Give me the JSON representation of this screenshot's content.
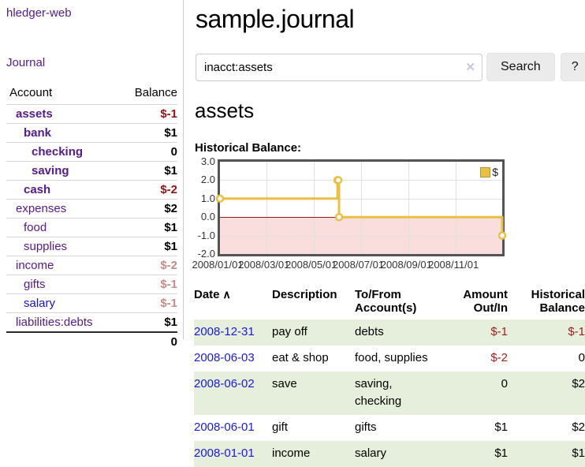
{
  "colors": {
    "link_purple": "#551a8b",
    "link_blue": "#1414cc",
    "negative_red": "#8f1414",
    "negative_muted": "#c98a8a",
    "row_green": "#e6efdc",
    "chart_line_gold": "#e9c044",
    "chart_below_zero_pink": "#fadddd",
    "chart_zero_line": "#8b1a1a"
  },
  "app": {
    "title": "hledger-web",
    "nav_journal": "Journal"
  },
  "sidebar": {
    "header": {
      "account": "Account",
      "balance": "Balance"
    },
    "accounts": [
      {
        "name": "assets",
        "balance": "$-1"
      },
      {
        "name": "bank",
        "balance": "$1"
      },
      {
        "name": "checking",
        "balance": "0"
      },
      {
        "name": "saving",
        "balance": "$1"
      },
      {
        "name": "cash",
        "balance": "$-2"
      },
      {
        "name": "expenses",
        "balance": "$2"
      },
      {
        "name": "food",
        "balance": "$1"
      },
      {
        "name": "supplies",
        "balance": "$1"
      },
      {
        "name": "income",
        "balance": "$-2"
      },
      {
        "name": "gifts",
        "balance": "$-1"
      },
      {
        "name": "salary",
        "balance": "$-1"
      },
      {
        "name": "liabilities:debts",
        "balance": "$1"
      }
    ],
    "total": "0"
  },
  "header": {
    "title": "sample.journal"
  },
  "search": {
    "value": "inacct:assets",
    "clear_icon": "✕",
    "button": "Search",
    "help_button": "?"
  },
  "account_page": {
    "heading": "assets",
    "chart_label": "Historical Balance:"
  },
  "chart_data": {
    "type": "line",
    "step": true,
    "title": "Historical Balance",
    "legend": "$",
    "x_range": [
      "2008-01-01",
      "2008-12-31"
    ],
    "ylim": [
      -2,
      3
    ],
    "y_ticks": [
      3,
      2,
      1,
      0,
      -1,
      -2
    ],
    "x_ticks": [
      "2008/01/01",
      "2008/03/01",
      "2008/05/01",
      "2008/07/01",
      "2008/09/01",
      "2008/11/01"
    ],
    "points": [
      {
        "x": "2008-01-01",
        "y": 1
      },
      {
        "x": "2008-06-01",
        "y": 2
      },
      {
        "x": "2008-06-02",
        "y": 2
      },
      {
        "x": "2008-06-03",
        "y": 0
      },
      {
        "x": "2008-12-31",
        "y": -1
      }
    ],
    "grid": true,
    "legend_position": "top-right"
  },
  "register": {
    "headers": {
      "date": "Date",
      "sort_icon": "∧",
      "description": "Description",
      "tofrom": "To/From\nAccount(s)",
      "amount": "Amount\nOut/In",
      "balance": "Historical\nBalance"
    },
    "rows": [
      {
        "date": "2008-12-31",
        "description": "pay off",
        "accounts_lines": [
          "debts"
        ],
        "amount": "$-1",
        "balance": "$-1"
      },
      {
        "date": "2008-06-03",
        "description": "eat & shop",
        "accounts_lines": [
          "food, supplies"
        ],
        "amount": "$-2",
        "balance": "0"
      },
      {
        "date": "2008-06-02",
        "description": "save",
        "accounts_lines": [
          "saving,",
          "checking"
        ],
        "amount": "0",
        "balance": "$2"
      },
      {
        "date": "2008-06-01",
        "description": "gift",
        "accounts_lines": [
          "gifts"
        ],
        "amount": "$1",
        "balance": "$2"
      },
      {
        "date": "2008-01-01",
        "description": "income",
        "accounts_lines": [
          "salary"
        ],
        "amount": "$1",
        "balance": "$1"
      }
    ]
  }
}
